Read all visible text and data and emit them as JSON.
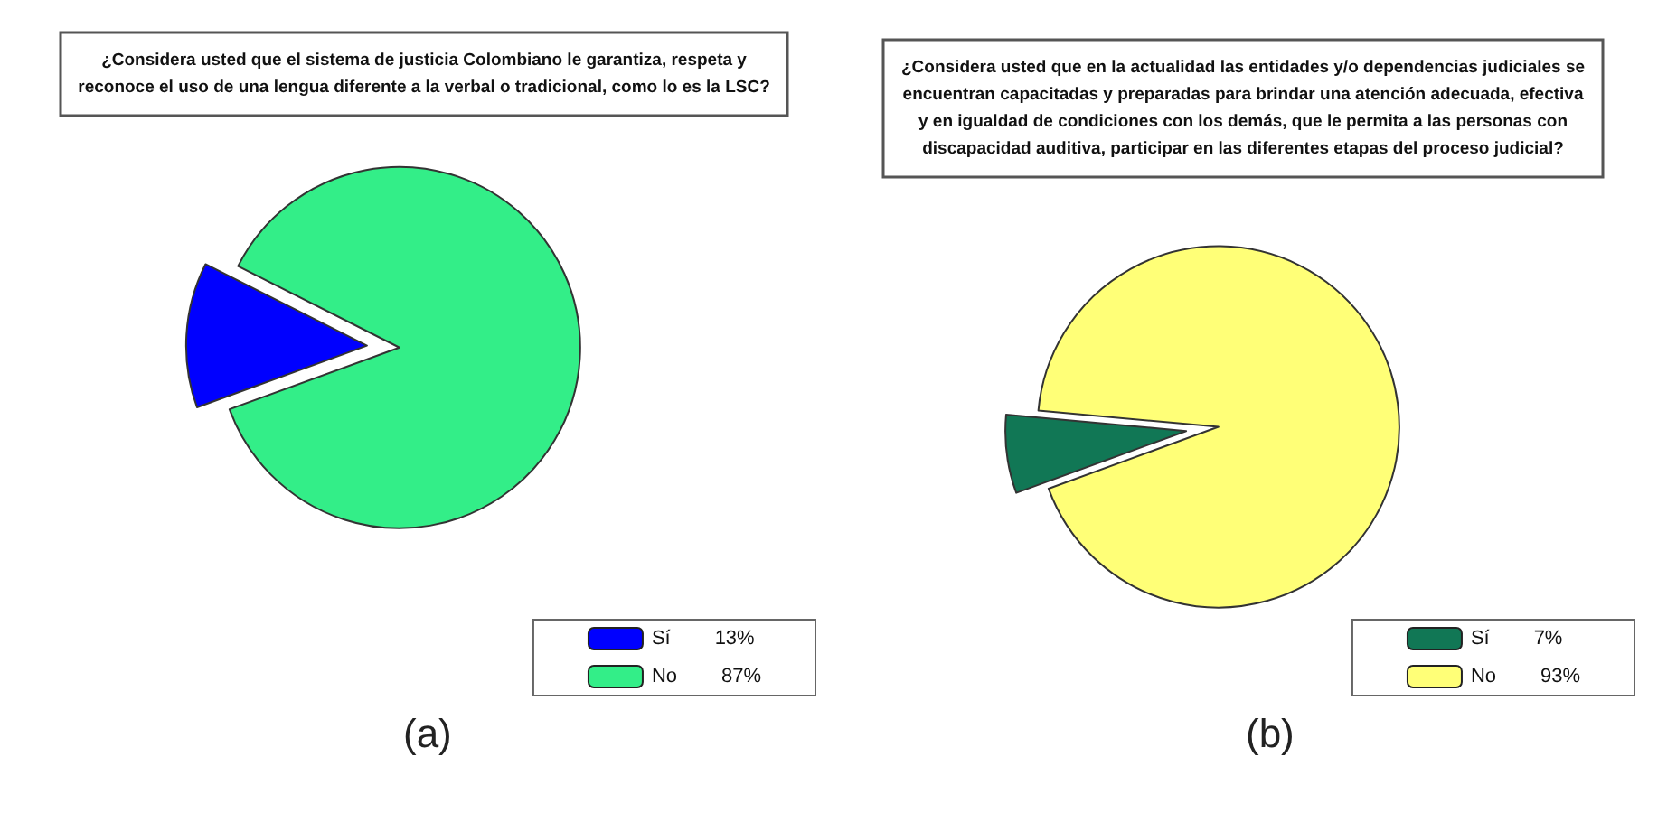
{
  "chart_data": [
    {
      "type": "pie",
      "title": "¿Considera usted que el sistema de justicia Colombiano le garantiza, respeta y\nreconoce el uso de una lengua diferente a la verbal o tradicional, como lo es la LSC?",
      "categories": [
        "Sí",
        "No"
      ],
      "values": [
        13,
        87
      ],
      "value_labels": [
        "13%",
        "87%"
      ],
      "colors": [
        "#0000ff",
        "#33ee88"
      ],
      "legend": "bottom right",
      "annotations": [
        "(a)"
      ]
    },
    {
      "type": "pie",
      "title": "¿Considera usted que en la actualidad las entidades y/o dependencias judiciales se\nencuentran capacitadas y preparadas para brindar una atención adecuada, efectiva\ny en igualdad de condiciones con los demás, que le permita a las personas con\ndiscapacidad auditiva, participar en las diferentes etapas del proceso judicial?",
      "categories": [
        "Sí",
        "No"
      ],
      "values": [
        7,
        93
      ],
      "value_labels": [
        "7%",
        "93%"
      ],
      "colors": [
        "#117755",
        "#ffff77"
      ],
      "legend": "bottom right",
      "annotations": [
        "(b)"
      ]
    }
  ]
}
